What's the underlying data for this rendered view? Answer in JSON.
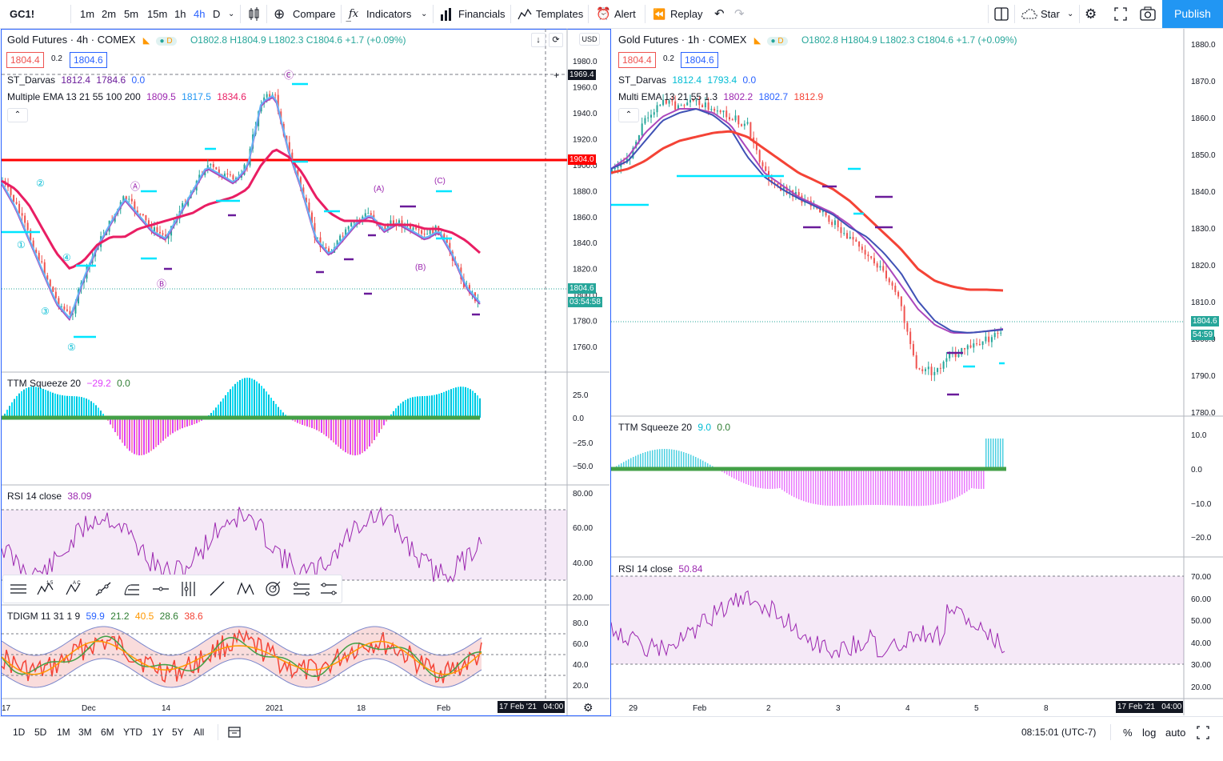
{
  "topbar": {
    "symbol": "GC1!",
    "intervals": [
      "1m",
      "2m",
      "5m",
      "15m",
      "1h",
      "4h",
      "D"
    ],
    "active_interval": "4h",
    "compare": "Compare",
    "indicators": "Indicators",
    "financials": "Financials",
    "templates": "Templates",
    "alert": "Alert",
    "replay": "Replay",
    "layout_name": "Star",
    "publish": "Publish"
  },
  "left_chart": {
    "title": "Gold Futures · 4h · COMEX",
    "ohlc": "O1802.8 H1804.9 L1802.3 C1804.6 +1.7 (+0.09%)",
    "bid": "1804.4",
    "spread": "0.2",
    "ask": "1804.6",
    "ind1": {
      "name": "ST_Darvas",
      "v1": "1812.4",
      "v2": "1784.6",
      "v3": "0.0"
    },
    "ind2": {
      "name": "Multiple EMA 13 21 55 100 200",
      "v1": "1809.5",
      "v2": "1817.5",
      "v3": "1834.6"
    },
    "currency": "USD",
    "price_ticks": [
      "1980.0",
      "1960.0",
      "1940.0",
      "1920.0",
      "1900.0",
      "1880.0",
      "1860.0",
      "1840.0",
      "1820.0",
      "1800.0",
      "1780.0",
      "1760.0"
    ],
    "crosshair_price": "1969.4",
    "hline_price": "1904.0",
    "last_price": "1804.6",
    "countdown": "03:54:58",
    "wave_labels_circle": [
      "①",
      "②",
      "③",
      "④",
      "⑤"
    ],
    "wave_labels_abc": [
      "Ⓐ",
      "Ⓑ",
      "Ⓒ"
    ],
    "wave_labels_paren": [
      "(A)",
      "(B)",
      "(C)"
    ],
    "ttm": {
      "name": "TTM Squeeze 20",
      "v1": "−29.2",
      "v2": "0.0",
      "ticks": [
        "25.0",
        "0.0",
        "−25.0",
        "−50.0"
      ]
    },
    "rsi": {
      "name": "RSI 14 close",
      "v1": "38.09",
      "ticks": [
        "80.00",
        "60.00",
        "40.00",
        "20.00"
      ]
    },
    "tdigm": {
      "name": "TDIGM 11 31 1 9",
      "v1": "59.9",
      "v2": "21.2",
      "v3": "40.5",
      "v4": "28.6",
      "v5": "38.6",
      "ticks": [
        "80.0",
        "60.0",
        "40.0",
        "20.0"
      ]
    },
    "time_labels": [
      "17",
      "Dec",
      "14",
      "2021",
      "18",
      "Feb"
    ],
    "crosshair_time": "17 Feb '21",
    "crosshair_time2": "04:00"
  },
  "right_chart": {
    "title": "Gold Futures · 1h · COMEX",
    "ohlc": "O1802.8 H1804.9 L1802.3 C1804.6 +1.7 (+0.09%)",
    "bid": "1804.4",
    "spread": "0.2",
    "ask": "1804.6",
    "ind1": {
      "name": "ST_Darvas",
      "v1": "1812.4",
      "v2": "1793.4",
      "v3": "0.0"
    },
    "ind2": {
      "name": "Multi EMA 13 21 55 1.3",
      "v1": "1802.2",
      "v2": "1802.7",
      "v3": "1812.9"
    },
    "price_ticks": [
      "1880.0",
      "1870.0",
      "1860.0",
      "1850.0",
      "1840.0",
      "1830.0",
      "1820.0",
      "1810.0",
      "1800.0",
      "1790.0",
      "1780.0"
    ],
    "last_price": "1804.6",
    "countdown": "54:59",
    "ttm": {
      "name": "TTM Squeeze 20",
      "v1": "9.0",
      "v2": "0.0",
      "ticks": [
        "10.0",
        "0.0",
        "−10.0",
        "−20.0"
      ]
    },
    "rsi": {
      "name": "RSI 14 close",
      "v1": "50.84",
      "ticks": [
        "70.00",
        "60.00",
        "50.00",
        "40.00",
        "30.00",
        "20.00"
      ]
    },
    "time_labels": [
      "29",
      "Feb",
      "2",
      "3",
      "4",
      "5",
      "8"
    ],
    "crosshair_time": "17 Feb '21",
    "crosshair_time2": "04:00"
  },
  "bottombar": {
    "ranges": [
      "1D",
      "5D",
      "1M",
      "3M",
      "6M",
      "YTD",
      "1Y",
      "5Y",
      "All"
    ],
    "clock": "08:15:01 (UTC-7)",
    "percent": "%",
    "log": "log",
    "auto": "auto"
  },
  "colors": {
    "accent": "#2962ff",
    "up": "#26a69a",
    "down": "#ef5350",
    "ema_slow": "#e91e63",
    "purple": "#9c27b0",
    "cyan": "#00e5ff",
    "publish": "#2196f3"
  }
}
